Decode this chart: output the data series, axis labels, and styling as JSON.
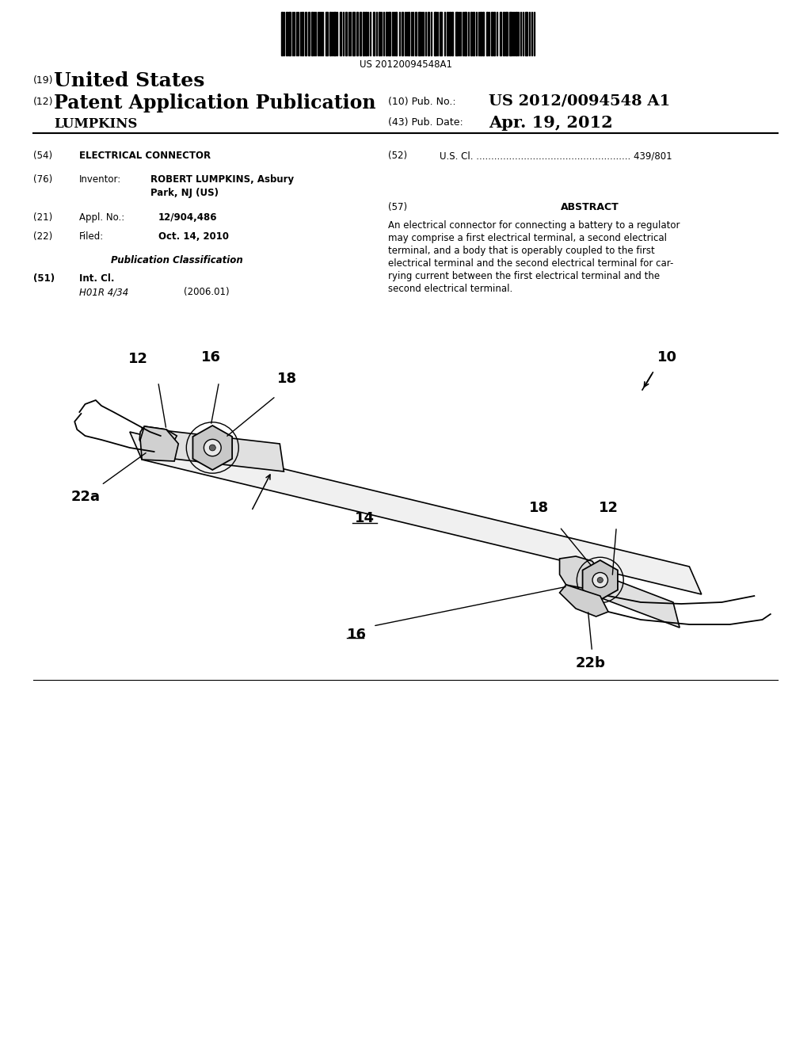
{
  "barcode_text": "US 20120094548A1",
  "patent_label19": "(19)",
  "patent_type1": "United States",
  "patent_label12": "(12)",
  "patent_type2": "Patent Application Publication",
  "inventor_last": "LUMPKINS",
  "pub_no_label": "(10) Pub. No.:",
  "pub_no": "US 2012/0094548 A1",
  "pub_date_label": "(43) Pub. Date:",
  "pub_date": "Apr. 19, 2012",
  "field54_label": "(54)",
  "field54_value": "ELECTRICAL CONNECTOR",
  "field52_label": "(52)",
  "field52_value": "U.S. Cl. .................................................... 439/801",
  "field76_label": "(76)",
  "field76_col1": "Inventor:",
  "field76_col2a": "ROBERT LUMPKINS, Asbury",
  "field76_col2b": "Park, NJ (US)",
  "field21_label": "(21)",
  "field21_col1": "Appl. No.:",
  "field21_col2": "12/904,486",
  "field22_label": "(22)",
  "field22_col1": "Filed:",
  "field22_col2": "Oct. 14, 2010",
  "pub_class_title": "Publication Classification",
  "field51_label": "(51)",
  "field51_col1": "Int. Cl.",
  "field51_class": "H01R 4/34",
  "field51_year": "(2006.01)",
  "field57_label": "(57)",
  "abstract_title": "ABSTRACT",
  "abstract_text": "An electrical connector for connecting a battery to a regulator may comprise a first electrical terminal, a second electrical terminal, and a body that is operably coupled to the first electrical terminal and the second electrical terminal for carrying current between the first electrical terminal and the second electrical terminal.",
  "bg_color": "#ffffff"
}
